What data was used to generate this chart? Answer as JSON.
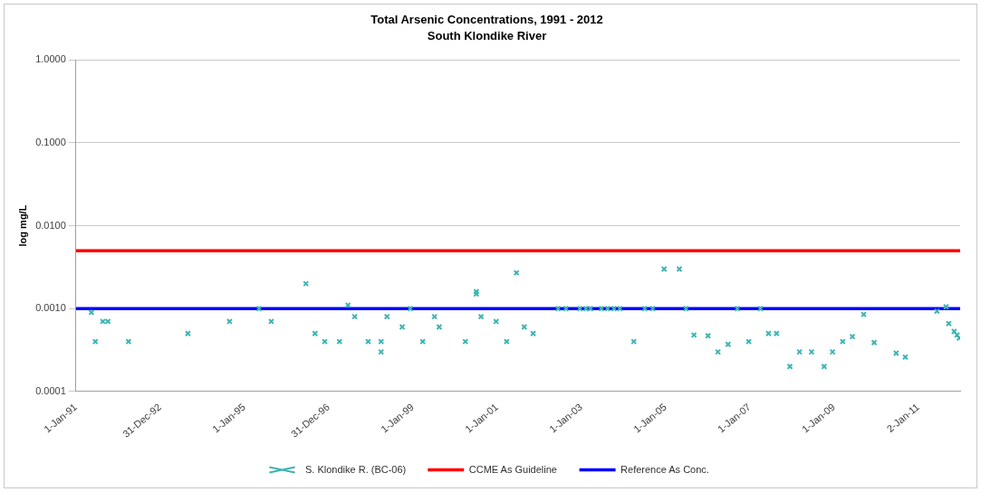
{
  "chart_data": {
    "type": "scatter",
    "title": "Total Arsenic Concentrations, 1991 - 2012",
    "subtitle": "South Klondike River",
    "ylabel": "log mg/L",
    "log": "y",
    "grid": "y",
    "legend": "bottom",
    "marker": "cross",
    "xlim": [
      "1991-01-01",
      "2012-01-01"
    ],
    "xticks": [
      {
        "value": "1991-01-01",
        "label": "1-Jan-91"
      },
      {
        "value": "1992-12-31",
        "label": "31-Dec-92"
      },
      {
        "value": "1995-01-01",
        "label": "1-Jan-95"
      },
      {
        "value": "1996-12-31",
        "label": "31-Dec-96"
      },
      {
        "value": "1999-01-01",
        "label": "1-Jan-99"
      },
      {
        "value": "2001-01-01",
        "label": "1-Jan-01"
      },
      {
        "value": "2003-01-01",
        "label": "1-Jan-03"
      },
      {
        "value": "2005-01-01",
        "label": "1-Jan-05"
      },
      {
        "value": "2007-01-01",
        "label": "1-Jan-07"
      },
      {
        "value": "2009-01-01",
        "label": "1-Jan-09"
      },
      {
        "value": "2011-01-02",
        "label": "2-Jan-11"
      }
    ],
    "ylim": [
      0.0001,
      1
    ],
    "yticks": [
      {
        "value": 0.0001,
        "label": "0.0001"
      },
      {
        "value": 0.001,
        "label": "0.0010"
      },
      {
        "value": 0.01,
        "label": "0.0100"
      },
      {
        "value": 0.1,
        "label": "0.1000"
      },
      {
        "value": 1,
        "label": "1.0000"
      }
    ],
    "series": [
      {
        "name": "S. Klondike R. (BC-06)",
        "color": "#3fb3b3",
        "x": [
          "1991-05-15",
          "1991-06-18",
          "1991-08-22",
          "1991-10-05",
          "1992-04-01",
          "1993-08-29",
          "1994-08-25",
          "1995-05-08",
          "1995-08-22",
          "1996-06-18",
          "1996-09-05",
          "1996-11-28",
          "1997-04-05",
          "1997-06-18",
          "1997-08-15",
          "1997-12-10",
          "1998-04-01",
          "1998-04-01",
          "1998-05-22",
          "1998-10-01",
          "1998-12-10",
          "1999-03-28",
          "1999-07-08",
          "1999-08-18",
          "2000-04-01",
          "2000-07-05",
          "2000-07-05",
          "2000-08-15",
          "2000-12-24",
          "2001-03-25",
          "2001-06-18",
          "2001-08-25",
          "2001-11-10",
          "2002-06-14",
          "2002-08-22",
          "2002-12-20",
          "2003-02-10",
          "2003-03-22",
          "2003-06-25",
          "2003-08-18",
          "2003-10-12",
          "2003-12-02",
          "2004-04-01",
          "2004-07-05",
          "2004-09-12",
          "2004-12-20",
          "2005-05-01",
          "2005-06-28",
          "2005-09-05",
          "2006-01-05",
          "2006-04-01",
          "2006-06-28",
          "2006-09-16",
          "2006-12-24",
          "2007-04-05",
          "2007-06-14",
          "2007-08-22",
          "2007-12-16",
          "2008-03-08",
          "2008-06-21",
          "2008-10-08",
          "2008-12-20",
          "2009-03-18",
          "2009-06-10",
          "2009-09-16",
          "2009-12-16",
          "2010-06-25",
          "2010-09-12",
          "2011-06-14",
          "2011-09-01",
          "2011-09-24",
          "2011-11-10",
          "2011-12-05",
          "2011-12-24"
        ],
        "values": [
          0.0009,
          0.0004,
          0.0007,
          0.0007,
          0.0004,
          0.0005,
          0.0007,
          0.001,
          0.0007,
          0.002,
          0.0005,
          0.0004,
          0.0004,
          0.0011,
          0.0008,
          0.0004,
          0.0004,
          0.0003,
          0.0008,
          0.0006,
          0.001,
          0.0004,
          0.0008,
          0.0006,
          0.0004,
          0.0016,
          0.0015,
          0.0008,
          0.0007,
          0.0004,
          0.0027,
          0.0006,
          0.0005,
          0.001,
          0.001,
          0.001,
          0.001,
          0.001,
          0.001,
          0.001,
          0.001,
          0.001,
          0.0004,
          0.001,
          0.001,
          0.003,
          0.003,
          0.001,
          0.00048,
          0.00047,
          0.0003,
          0.00037,
          0.001,
          0.0004,
          0.001,
          0.0005,
          0.0005,
          0.0002,
          0.0003,
          0.0003,
          0.0002,
          0.0003,
          0.0004,
          0.00046,
          0.00085,
          0.00039,
          0.00029,
          0.00026,
          0.00093,
          0.00105,
          0.00066,
          0.00053,
          0.00048,
          0.00044
        ]
      }
    ],
    "ref_lines": [
      {
        "axis": "y",
        "value": 0.005,
        "label": "CCME As Guideline",
        "color": "#ff0000"
      },
      {
        "axis": "y",
        "value": 0.001,
        "label": "Reference As Conc.",
        "color": "#0000ff"
      }
    ]
  }
}
